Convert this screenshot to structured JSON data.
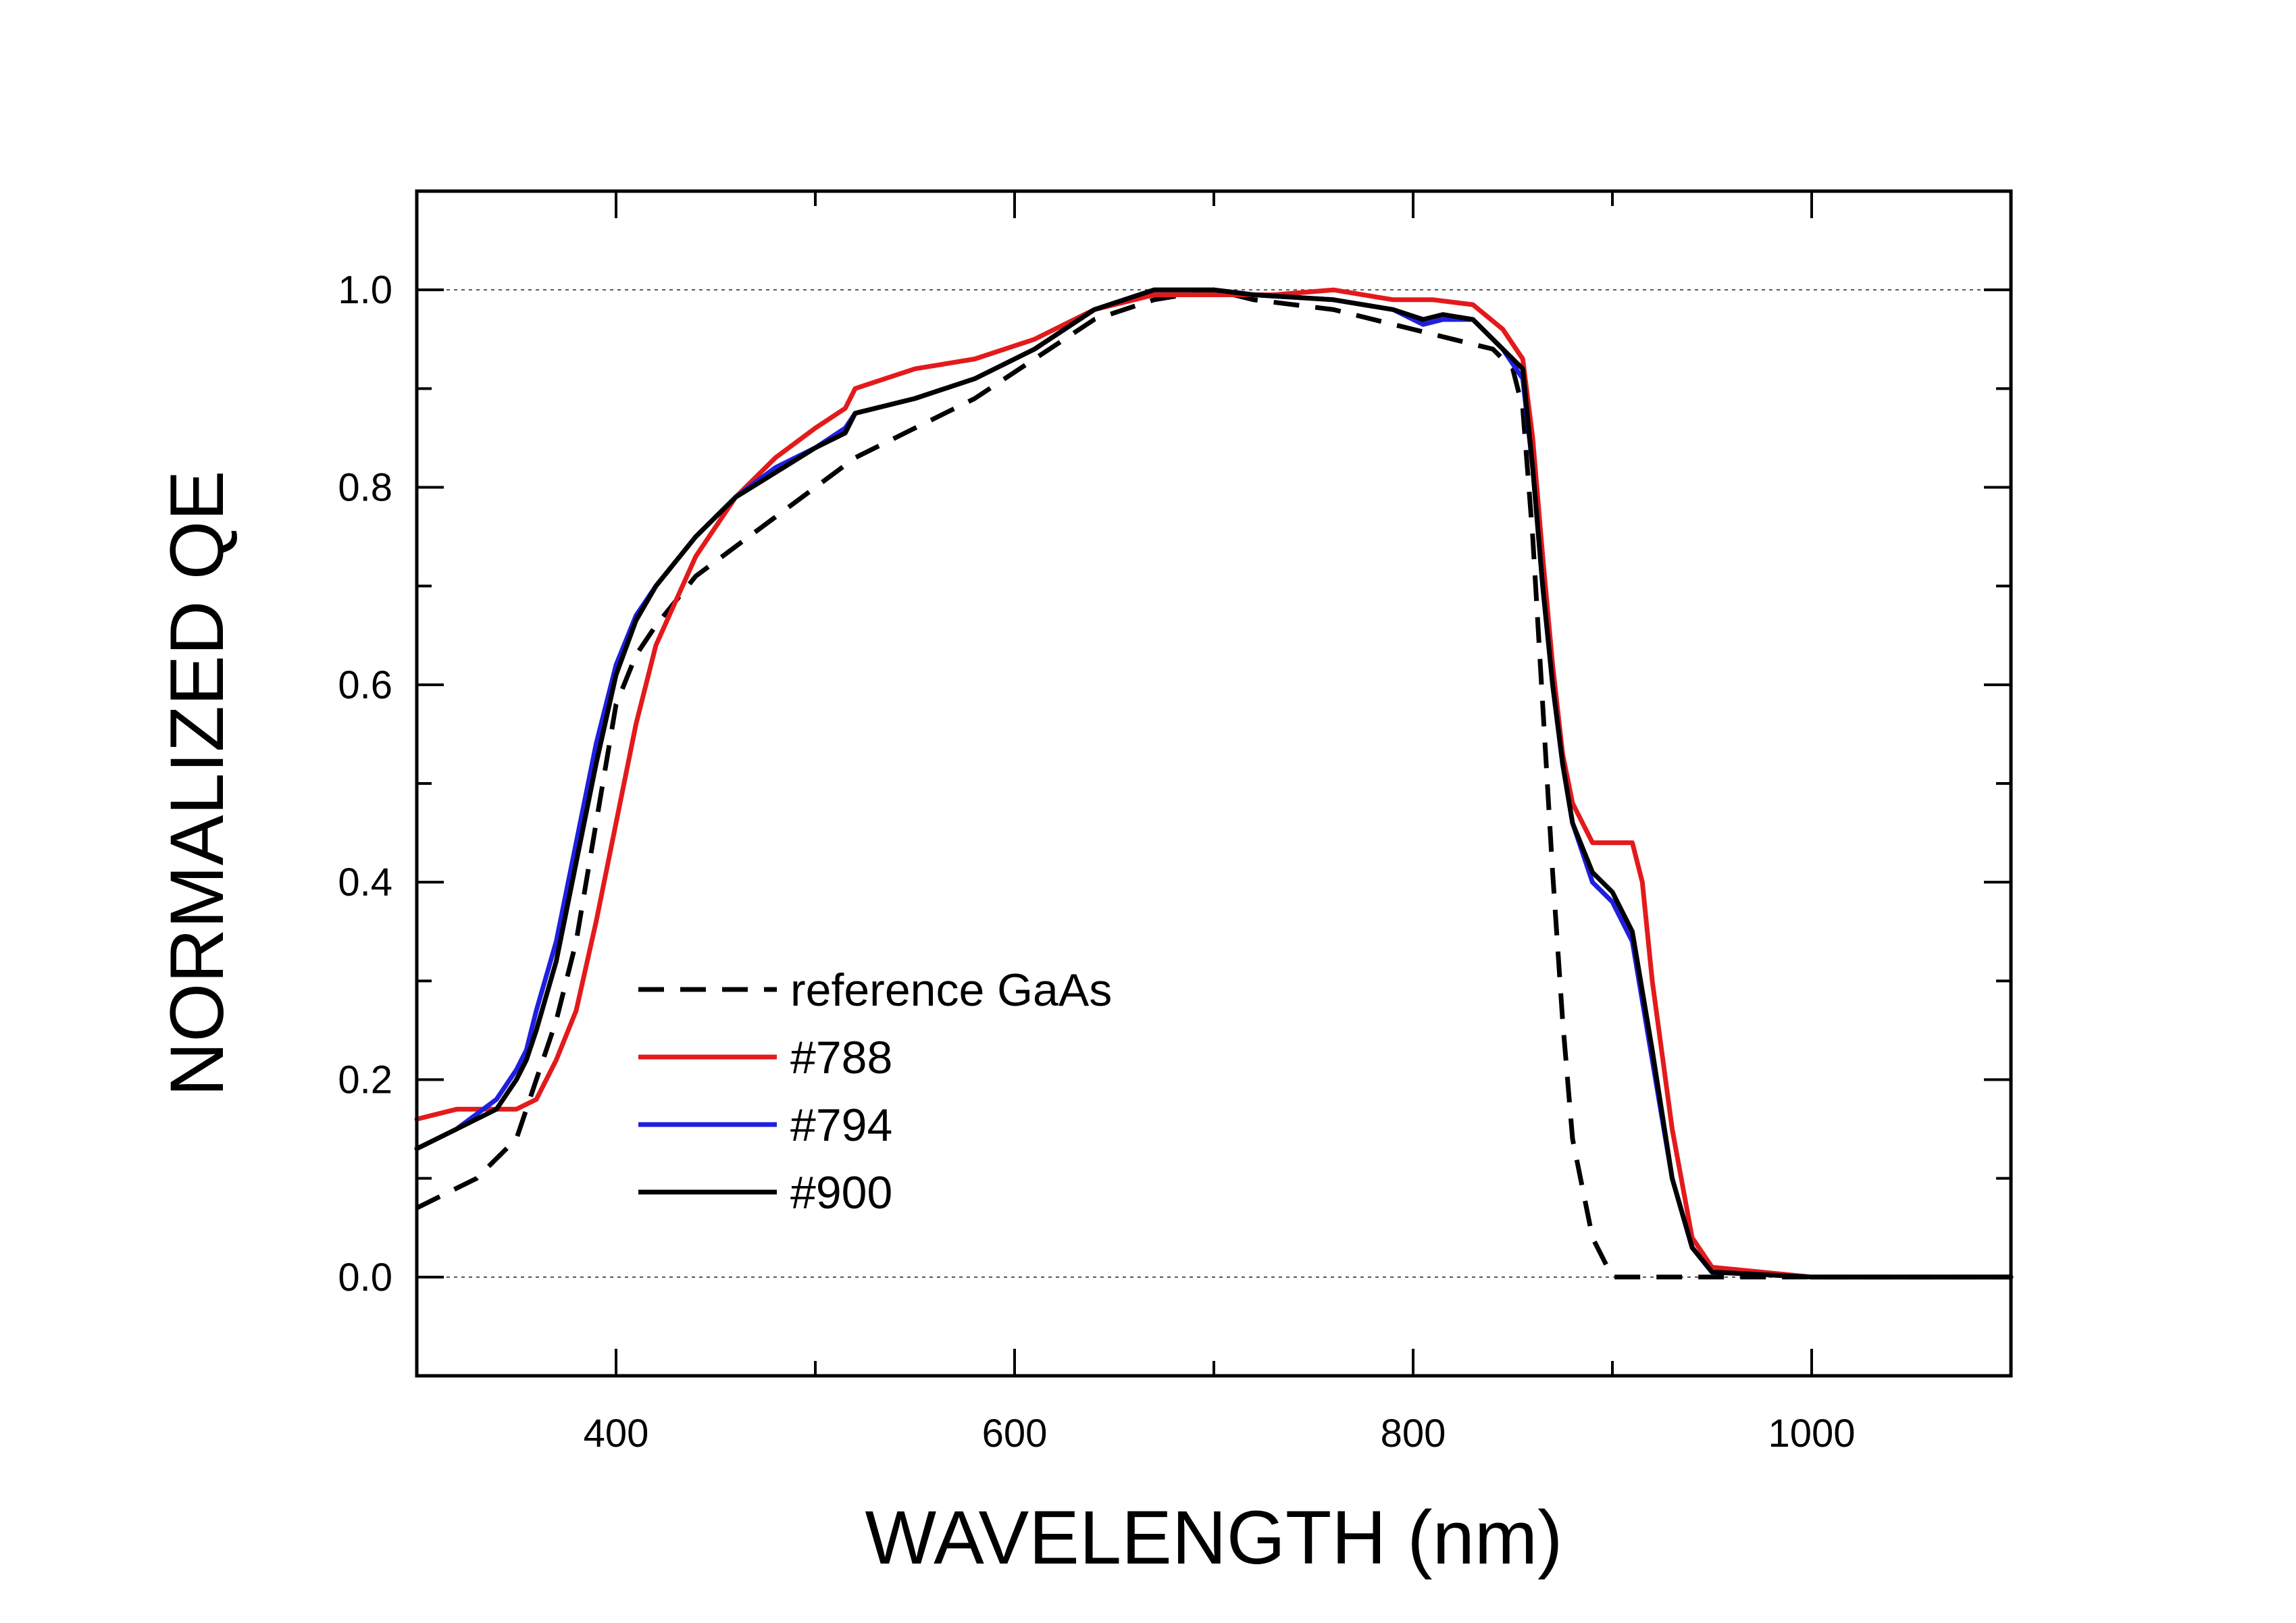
{
  "chart_data": {
    "type": "line",
    "title": "",
    "xlabel": "WAVELENGTH (nm)",
    "ylabel": "NORMALIZED QE",
    "xlim": [
      300,
      1100
    ],
    "ylim": [
      -0.1,
      1.1
    ],
    "xticks": [
      400,
      600,
      800,
      1000
    ],
    "xtick_labels": [
      "400",
      "600",
      "800",
      "1000"
    ],
    "yticks": [
      0.0,
      0.2,
      0.4,
      0.6,
      0.8,
      1.0
    ],
    "ytick_labels": [
      "0.0",
      "0.2",
      "0.4",
      "0.6",
      "0.8",
      "1.0"
    ],
    "reference_lines": [
      0.0,
      1.0
    ],
    "legend_position": "lower-left",
    "series": [
      {
        "name": "reference GaAs",
        "color": "#000000",
        "dash": "dashed",
        "x": [
          300,
          330,
          350,
          360,
          370,
          380,
          390,
          400,
          410,
          420,
          440,
          460,
          480,
          500,
          520,
          550,
          580,
          610,
          640,
          670,
          700,
          720,
          760,
          800,
          820,
          840,
          850,
          855,
          860,
          865,
          870,
          875,
          880,
          890,
          900,
          920,
          950,
          1000,
          1100
        ],
        "y": [
          0.07,
          0.1,
          0.14,
          0.2,
          0.26,
          0.34,
          0.46,
          0.58,
          0.63,
          0.66,
          0.71,
          0.74,
          0.77,
          0.8,
          0.83,
          0.86,
          0.89,
          0.93,
          0.97,
          0.99,
          1.0,
          0.99,
          0.98,
          0.96,
          0.95,
          0.94,
          0.92,
          0.88,
          0.75,
          0.58,
          0.41,
          0.26,
          0.14,
          0.04,
          0.0,
          0.0,
          0.0,
          0.0,
          0.0
        ]
      },
      {
        "name": "#788",
        "color": "#e31a1c",
        "dash": "solid",
        "x": [
          300,
          320,
          340,
          350,
          360,
          370,
          380,
          390,
          400,
          410,
          420,
          440,
          460,
          480,
          500,
          515,
          520,
          550,
          580,
          610,
          640,
          670,
          700,
          730,
          760,
          790,
          800,
          810,
          830,
          845,
          855,
          860,
          865,
          870,
          875,
          880,
          890,
          900,
          910,
          915,
          920,
          930,
          940,
          950,
          1000,
          1100
        ],
        "y": [
          0.16,
          0.17,
          0.17,
          0.17,
          0.18,
          0.22,
          0.27,
          0.36,
          0.46,
          0.56,
          0.64,
          0.73,
          0.79,
          0.83,
          0.86,
          0.88,
          0.9,
          0.92,
          0.93,
          0.95,
          0.98,
          0.995,
          0.995,
          0.995,
          1.0,
          0.99,
          0.99,
          0.99,
          0.985,
          0.96,
          0.93,
          0.85,
          0.73,
          0.62,
          0.53,
          0.48,
          0.44,
          0.44,
          0.44,
          0.4,
          0.3,
          0.15,
          0.04,
          0.01,
          0.0,
          0.0
        ]
      },
      {
        "name": "#794",
        "color": "#1f1fe0",
        "dash": "solid",
        "x": [
          300,
          320,
          340,
          350,
          355,
          360,
          370,
          380,
          390,
          400,
          410,
          420,
          440,
          460,
          480,
          500,
          515,
          520,
          550,
          580,
          610,
          640,
          670,
          700,
          720,
          760,
          790,
          805,
          815,
          830,
          845,
          855,
          860,
          865,
          870,
          875,
          880,
          890,
          900,
          910,
          920,
          930,
          940,
          950,
          1000,
          1100
        ],
        "y": [
          0.13,
          0.15,
          0.18,
          0.21,
          0.23,
          0.27,
          0.34,
          0.44,
          0.54,
          0.62,
          0.67,
          0.7,
          0.75,
          0.79,
          0.82,
          0.84,
          0.86,
          0.875,
          0.89,
          0.91,
          0.94,
          0.98,
          1.0,
          1.0,
          0.995,
          0.99,
          0.98,
          0.965,
          0.97,
          0.97,
          0.94,
          0.91,
          0.82,
          0.7,
          0.6,
          0.52,
          0.46,
          0.4,
          0.38,
          0.34,
          0.22,
          0.1,
          0.03,
          0.005,
          0.0,
          0.0
        ]
      },
      {
        "name": "#900",
        "color": "#000000",
        "dash": "solid",
        "x": [
          300,
          320,
          340,
          350,
          355,
          360,
          370,
          380,
          390,
          400,
          410,
          420,
          440,
          460,
          480,
          500,
          515,
          520,
          550,
          580,
          610,
          640,
          670,
          700,
          720,
          760,
          790,
          805,
          815,
          830,
          845,
          855,
          860,
          865,
          870,
          875,
          880,
          890,
          900,
          910,
          920,
          930,
          940,
          950,
          1000,
          1100
        ],
        "y": [
          0.13,
          0.15,
          0.17,
          0.2,
          0.22,
          0.25,
          0.32,
          0.42,
          0.52,
          0.61,
          0.665,
          0.7,
          0.75,
          0.79,
          0.815,
          0.84,
          0.855,
          0.875,
          0.89,
          0.91,
          0.94,
          0.98,
          1.0,
          1.0,
          0.995,
          0.99,
          0.98,
          0.97,
          0.975,
          0.97,
          0.94,
          0.92,
          0.82,
          0.7,
          0.6,
          0.52,
          0.46,
          0.41,
          0.39,
          0.35,
          0.23,
          0.1,
          0.03,
          0.005,
          0.0,
          0.0
        ]
      }
    ]
  }
}
